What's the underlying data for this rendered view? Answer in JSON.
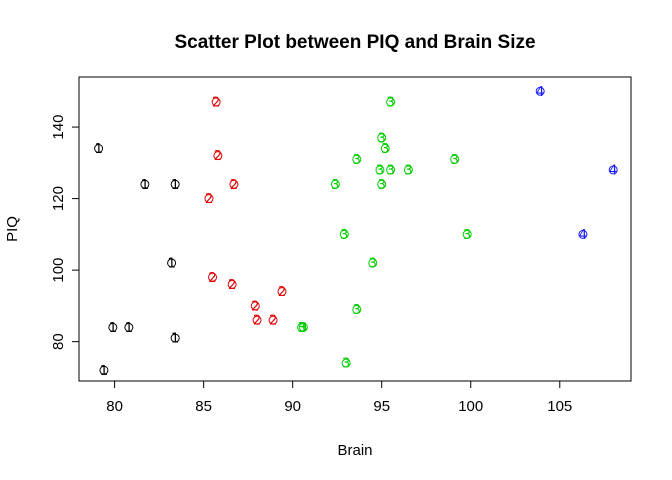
{
  "chart_data": {
    "type": "scatter",
    "title": "Scatter Plot between PIQ and Brain Size",
    "xlabel": "Brain",
    "ylabel": "PIQ",
    "xlim": [
      78,
      109
    ],
    "ylim": [
      69,
      154
    ],
    "xticks": [
      "80",
      "85",
      "90",
      "95",
      "100",
      "105"
    ],
    "yticks": [
      "80",
      "100",
      "120",
      "140"
    ],
    "grid": false,
    "legend": "none",
    "series": [
      {
        "marker": "1",
        "color": "#000000",
        "points": [
          {
            "x": 79.1,
            "y": 134
          },
          {
            "x": 81.7,
            "y": 124
          },
          {
            "x": 83.4,
            "y": 124
          },
          {
            "x": 83.2,
            "y": 102
          },
          {
            "x": 79.9,
            "y": 84
          },
          {
            "x": 80.8,
            "y": 84
          },
          {
            "x": 83.4,
            "y": 81
          },
          {
            "x": 79.4,
            "y": 72
          }
        ]
      },
      {
        "marker": "2",
        "color": "#df0000",
        "points": [
          {
            "x": 85.7,
            "y": 147
          },
          {
            "x": 85.8,
            "y": 132
          },
          {
            "x": 86.7,
            "y": 124
          },
          {
            "x": 85.3,
            "y": 120
          },
          {
            "x": 85.5,
            "y": 98
          },
          {
            "x": 86.6,
            "y": 96
          },
          {
            "x": 89.4,
            "y": 94
          },
          {
            "x": 87.9,
            "y": 90
          },
          {
            "x": 88.0,
            "y": 86
          },
          {
            "x": 88.9,
            "y": 86
          }
        ]
      },
      {
        "marker": "3",
        "color": "#00cc00",
        "points": [
          {
            "x": 95.5,
            "y": 147
          },
          {
            "x": 95.0,
            "y": 137
          },
          {
            "x": 95.2,
            "y": 134
          },
          {
            "x": 93.6,
            "y": 131
          },
          {
            "x": 99.1,
            "y": 131
          },
          {
            "x": 94.9,
            "y": 128
          },
          {
            "x": 95.5,
            "y": 128
          },
          {
            "x": 96.5,
            "y": 128
          },
          {
            "x": 92.4,
            "y": 124
          },
          {
            "x": 95.0,
            "y": 124
          },
          {
            "x": 92.9,
            "y": 110
          },
          {
            "x": 99.8,
            "y": 110
          },
          {
            "x": 94.5,
            "y": 102
          },
          {
            "x": 93.6,
            "y": 89
          },
          {
            "x": 90.5,
            "y": 84
          },
          {
            "x": 90.6,
            "y": 84
          },
          {
            "x": 93.0,
            "y": 74
          }
        ]
      },
      {
        "marker": "4",
        "color": "#1a1aff",
        "points": [
          {
            "x": 103.9,
            "y": 150
          },
          {
            "x": 108.0,
            "y": 128
          },
          {
            "x": 106.3,
            "y": 110
          }
        ]
      }
    ]
  }
}
